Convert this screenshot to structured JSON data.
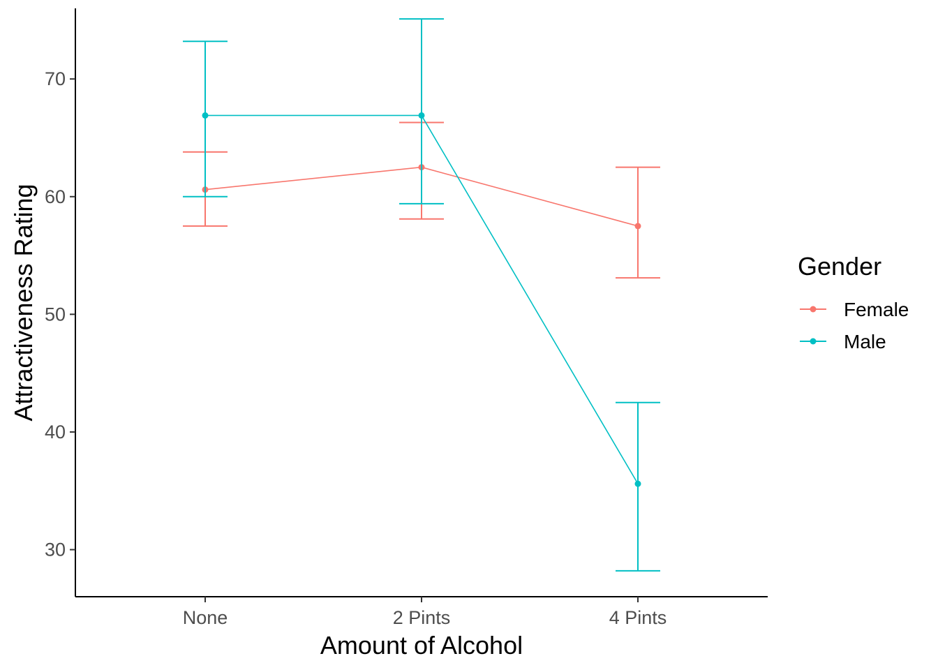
{
  "chart_data": {
    "type": "line",
    "xlabel": "Amount of Alcohol",
    "ylabel": "Attractiveness Rating",
    "categories": [
      "None",
      "2 Pints",
      "4 Pints"
    ],
    "ylim": [
      26,
      76
    ],
    "yticks": [
      30,
      40,
      50,
      60,
      70
    ],
    "legend": {
      "title": "Gender",
      "position": "right"
    },
    "grid": false,
    "series": [
      {
        "name": "Female",
        "color": "#F8766D",
        "values": [
          60.6,
          62.5,
          57.5
        ],
        "lower": [
          57.5,
          58.1,
          53.1
        ],
        "upper": [
          63.8,
          66.3,
          62.5
        ]
      },
      {
        "name": "Male",
        "color": "#00BFC4",
        "values": [
          66.9,
          66.9,
          35.6
        ],
        "lower": [
          60.0,
          59.4,
          28.2
        ],
        "upper": [
          73.2,
          75.1,
          42.5
        ]
      }
    ]
  }
}
